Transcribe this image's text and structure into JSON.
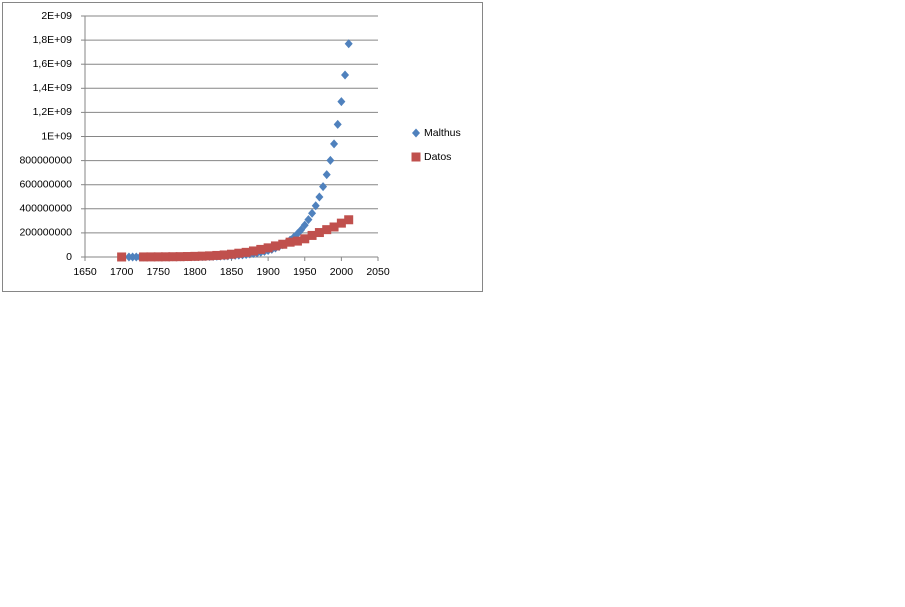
{
  "chart_data": {
    "type": "scatter",
    "xlim": [
      1650,
      2050
    ],
    "xticks": [
      1650,
      1700,
      1750,
      1800,
      1850,
      1900,
      1950,
      2000,
      2050
    ],
    "ylim": [
      0,
      2000000000
    ],
    "yticks": [
      0,
      200000000,
      400000000,
      600000000,
      800000000,
      {
        "value": 1000000000,
        "label": "1E+09"
      },
      {
        "value": 1200000000,
        "label": "1,2E+09"
      },
      {
        "value": 1400000000,
        "label": "1,4E+09"
      },
      {
        "value": 1600000000,
        "label": "1,6E+09"
      },
      {
        "value": 1800000000,
        "label": "1,8E+09"
      },
      {
        "value": 2000000000,
        "label": "2E+09"
      }
    ],
    "grid": true,
    "legend": "right",
    "series": [
      {
        "name": "Malthus",
        "color": "#4f81bd",
        "marker": "diamond",
        "x": [
          1710,
          1715,
          1720,
          1725,
          1730,
          1735,
          1740,
          1745,
          1750,
          1755,
          1760,
          1765,
          1770,
          1775,
          1780,
          1785,
          1790,
          1795,
          1800,
          1805,
          1810,
          1815,
          1820,
          1825,
          1830,
          1835,
          1840,
          1845,
          1850,
          1855,
          1860,
          1865,
          1870,
          1875,
          1880,
          1885,
          1890,
          1895,
          1900,
          1905,
          1910,
          1915,
          1920,
          1925,
          1930,
          1935,
          1940,
          1945,
          1950,
          1955,
          1960,
          1965,
          1970,
          1975,
          1980,
          1985,
          1990,
          1995,
          2000,
          2005,
          2010
        ],
        "values": [
          130000,
          160000,
          180000,
          210000,
          250000,
          290000,
          340000,
          400000,
          470000,
          550000,
          650000,
          760000,
          900000,
          1000000,
          1200000,
          1400000,
          1700000,
          2000000,
          2300000,
          2700000,
          3100000,
          3700000,
          4300000,
          5000000,
          5900000,
          6900000,
          8100000,
          9500000,
          11100000,
          13000000,
          15300000,
          17900000,
          21000000,
          24500000,
          28800000,
          33700000,
          39500000,
          46300000,
          54200000,
          63500000,
          74400000,
          87200000,
          102100000,
          119700000,
          140200000,
          164300000,
          192500000,
          225600000,
          264300000,
          309700000,
          362900000,
          425200000,
          498200000,
          583800000,
          684000000,
          801500000,
          939100000,
          1100300000,
          1289200000,
          1510600000,
          1770000000
        ]
      },
      {
        "name": "Datos",
        "color": "#c0504d",
        "marker": "square",
        "x": [
          1700,
          1730,
          1740,
          1750,
          1760,
          1770,
          1780,
          1790,
          1800,
          1810,
          1820,
          1830,
          1840,
          1850,
          1860,
          1870,
          1880,
          1890,
          1900,
          1910,
          1920,
          1930,
          1940,
          1950,
          1960,
          1970,
          1980,
          1990,
          2000,
          2010
        ],
        "values": [
          250000,
          630000,
          910000,
          1170000,
          1590000,
          2150000,
          2780000,
          3900000,
          5300000,
          7200000,
          9600000,
          12900000,
          17100000,
          23200000,
          31400000,
          38600000,
          50200000,
          63000000,
          76000000,
          92000000,
          106000000,
          123000000,
          132000000,
          151000000,
          179000000,
          203000000,
          227000000,
          249000000,
          281000000,
          309000000
        ]
      }
    ]
  }
}
